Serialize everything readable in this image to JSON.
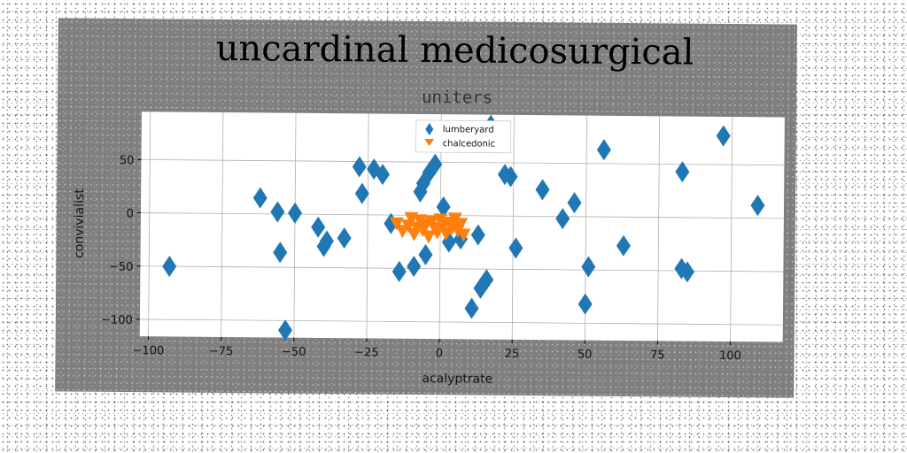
{
  "chart_data": {
    "type": "scatter",
    "title": "uncardinal medicosurgical",
    "subtitle": "uniters",
    "xlabel": "acalyptrate",
    "ylabel": "convivialist",
    "xlim": [
      -103,
      118
    ],
    "ylim": [
      -116,
      95
    ],
    "xticks": [
      -100,
      -75,
      -50,
      -25,
      0,
      25,
      50,
      75,
      100
    ],
    "yticks": [
      -100,
      -50,
      0,
      50
    ],
    "grid": true,
    "legend_position": "top-center",
    "series": [
      {
        "name": "lumberyard",
        "color": "#1f77b4",
        "marker": "diamond",
        "points": [
          [
            -93,
            -50
          ],
          [
            -62,
            15
          ],
          [
            -56,
            2
          ],
          [
            -55,
            -36
          ],
          [
            -50,
            1
          ],
          [
            -53,
            -109
          ],
          [
            -42,
            -12
          ],
          [
            -40,
            -30
          ],
          [
            -39,
            -25
          ],
          [
            -33,
            -22
          ],
          [
            -28,
            45
          ],
          [
            -27,
            20
          ],
          [
            -23,
            43
          ],
          [
            -20,
            38
          ],
          [
            -17,
            -8
          ],
          [
            -14,
            -53
          ],
          [
            -9,
            -48
          ],
          [
            -7,
            22
          ],
          [
            -6,
            30
          ],
          [
            -4,
            40
          ],
          [
            -2,
            48
          ],
          [
            -5,
            -37
          ],
          [
            1,
            8
          ],
          [
            3,
            -25
          ],
          [
            7,
            -22
          ],
          [
            11,
            -87
          ],
          [
            13,
            -18
          ],
          [
            14,
            -68
          ],
          [
            16,
            -60
          ],
          [
            17,
            85
          ],
          [
            22,
            39
          ],
          [
            24,
            37
          ],
          [
            26,
            -30
          ],
          [
            35,
            25
          ],
          [
            42,
            -2
          ],
          [
            46,
            13
          ],
          [
            50,
            -82
          ],
          [
            51,
            -47
          ],
          [
            56,
            63
          ],
          [
            63,
            -27
          ],
          [
            83,
            43
          ],
          [
            83,
            -48
          ],
          [
            85,
            -51
          ],
          [
            97,
            77
          ],
          [
            109,
            12
          ]
        ]
      },
      {
        "name": "chalcedonic",
        "color": "#ff7f0e",
        "marker": "triangle_down",
        "points": [
          [
            -15,
            -8
          ],
          [
            -13,
            -15
          ],
          [
            -11,
            -10
          ],
          [
            -10,
            -3
          ],
          [
            -9,
            -18
          ],
          [
            -8,
            -12
          ],
          [
            -7,
            -5
          ],
          [
            -6,
            -14
          ],
          [
            -5,
            -9
          ],
          [
            -4,
            -20
          ],
          [
            -3,
            -6
          ],
          [
            -2,
            -12
          ],
          [
            -1,
            -16
          ],
          [
            0,
            -4
          ],
          [
            1,
            -10
          ],
          [
            2,
            -17
          ],
          [
            3,
            -7
          ],
          [
            4,
            -12
          ],
          [
            5,
            -3
          ],
          [
            6,
            -14
          ],
          [
            7,
            -8
          ],
          [
            8,
            -18
          ]
        ]
      }
    ]
  }
}
